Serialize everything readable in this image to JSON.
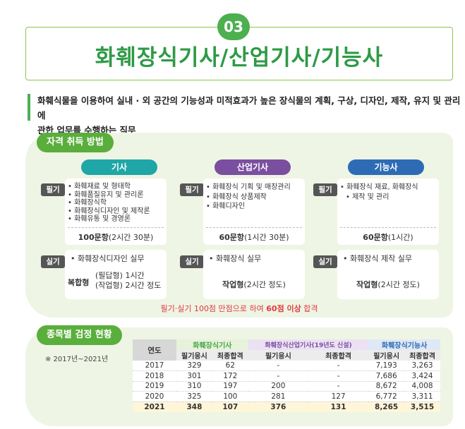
{
  "header": {
    "number": "03",
    "title": "화훼장식기사/산업기사/기능사"
  },
  "description": {
    "line1": "화훼식물을 이용하여 실내 · 외 공간의 기능성과 미적효과가 높은 장식물의 계획, 구상, 디자인, 제작, 유지 및 관리에",
    "line2": "관한 업무를 수행하는 직무"
  },
  "qualification": {
    "section_title": "자격 취득 방법",
    "written_label": "필기",
    "practical_label": "실기",
    "columns": [
      {
        "name": "기사",
        "color": "#1fa6a6",
        "written_items": [
          "화훼재료 및 형태학",
          "화훼품질유지 및 관리론",
          "화훼장식학",
          "화훼장식디자인 및 제작론",
          "화훼유통 및 경영론"
        ],
        "written_count": "100문항",
        "written_time": "(2시간 30분)",
        "practical_items": [
          "화훼장식디자인 실무"
        ],
        "practical_type": "복합형",
        "practical_detail1": "(필답형) 1시간",
        "practical_detail2": "(작업형) 2시간 정도"
      },
      {
        "name": "산업기사",
        "color": "#7a4fa0",
        "written_items": [
          "화훼장식 기획 및 매장관리",
          "화훼장식 상품제작",
          "화훼디자인"
        ],
        "written_count": "60문항",
        "written_time": "(1시간 30분)",
        "practical_items": [
          "화훼장식 실무"
        ],
        "practical_type": "작업형",
        "practical_detail": "(2시간 정도)"
      },
      {
        "name": "기능사",
        "color": "#2d6bb5",
        "written_items": [
          "화훼장식 재료, 화훼장식",
          "제작 및 관리"
        ],
        "written_count": "60문항",
        "written_time": "(1시간)",
        "practical_items": [
          "화훼장식 제작 실무"
        ],
        "practical_type": "작업형",
        "practical_detail": "(2시간 정도)"
      }
    ],
    "pass_note_a": "필기·실기 100점 만점으로 하여 ",
    "pass_note_b": "60점 이상",
    "pass_note_c": " 합격"
  },
  "stats": {
    "section_title": "종목별 검정 현황",
    "range": "※ 2017년~2021년",
    "year_header": "연도",
    "groups": [
      {
        "name": "화훼장식기사",
        "color": "#4aa64a"
      },
      {
        "name": "화훼장식산업기사(19년도 신설)",
        "color": "#7a4fa0"
      },
      {
        "name": "화훼장식기능사",
        "color": "#2d6bb5"
      }
    ],
    "sub_headers": [
      "필기응시",
      "최종합격",
      "필기응시",
      "최종합격",
      "필기응시",
      "최종합격"
    ],
    "rows": [
      [
        "2017",
        "329",
        "62",
        "-",
        "-",
        "7,193",
        "3,263"
      ],
      [
        "2018",
        "301",
        "172",
        "-",
        "-",
        "7,686",
        "3,424"
      ],
      [
        "2019",
        "310",
        "197",
        "200",
        "-",
        "8,672",
        "4,008"
      ],
      [
        "2020",
        "325",
        "100",
        "281",
        "127",
        "6,772",
        "3,311"
      ],
      [
        "2021",
        "348",
        "107",
        "376",
        "131",
        "8,265",
        "3,515"
      ]
    ]
  }
}
